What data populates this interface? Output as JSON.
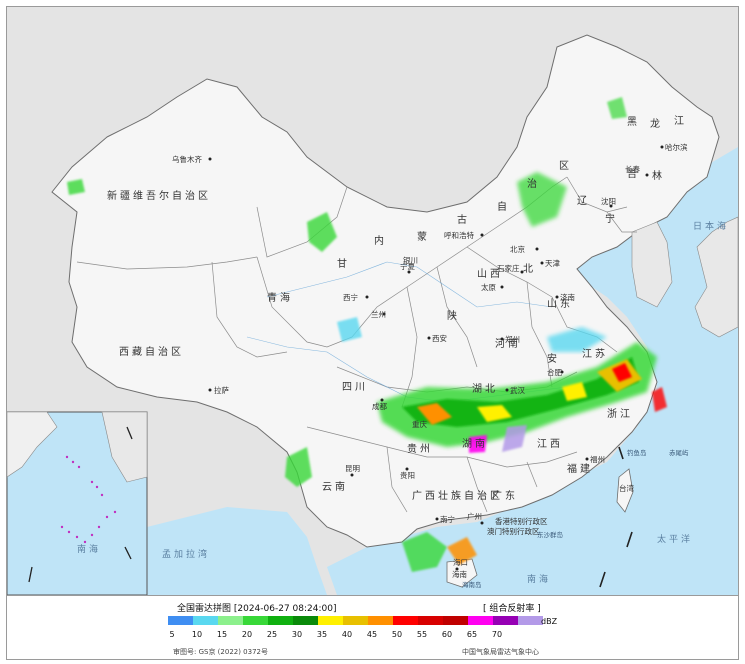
{
  "legend": {
    "title": "全国雷达拼图 [2024-06-27 08:24:00]",
    "mode": "[ 组合反射率 ]",
    "unit": "dBZ",
    "approval": "审图号: GS京 (2022) 0372号",
    "source": "中国气象局雷达气象中心",
    "scale": [
      {
        "value": "5",
        "color": "#3f8ef2"
      },
      {
        "value": "10",
        "color": "#5ad8f0"
      },
      {
        "value": "15",
        "color": "#8cf08c"
      },
      {
        "value": "20",
        "color": "#38d838"
      },
      {
        "value": "25",
        "color": "#10b010"
      },
      {
        "value": "30",
        "color": "#0a8a0a"
      },
      {
        "value": "35",
        "color": "#fff000"
      },
      {
        "value": "40",
        "color": "#e8c000"
      },
      {
        "value": "45",
        "color": "#ff9000"
      },
      {
        "value": "50",
        "color": "#ff0000"
      },
      {
        "value": "55",
        "color": "#d80000"
      },
      {
        "value": "60",
        "color": "#c00000"
      },
      {
        "value": "65",
        "color": "#ff00f0"
      },
      {
        "value": "70",
        "color": "#9600b4"
      },
      {
        "value": "",
        "color": "#b39ae8"
      }
    ]
  },
  "map": {
    "regions": {
      "xinjiang": "新疆维吾尔自治区",
      "xizang": "西藏自治区",
      "qinghai": "青海",
      "neimenggu_1": "内",
      "neimenggu_2": "蒙",
      "neimenggu_3": "古",
      "neimenggu_4": "自",
      "neimenggu_5": "治",
      "neimenggu_6": "区",
      "heilongjiang_1": "黑",
      "heilongjiang_2": "龙",
      "heilongjiang_3": "江",
      "jilin_1": "吉",
      "jilin_2": "林",
      "liaoning_1": "辽",
      "liaoning_2": "宁",
      "gansu": "甘",
      "ningxia": "宁夏",
      "shaanxi": "陕",
      "shanxi": "山西",
      "hebei": "北",
      "shandong": "山东",
      "henan": "河南",
      "hubei": "湖北",
      "hunan": "湖南",
      "sichuan": "四川",
      "chongqing": "重庆",
      "guizhou": "贵州",
      "yunnan": "云南",
      "guangxi": "广西壮族自治区",
      "guangdong": "广东",
      "jiangxi": "江西",
      "anhui": "安",
      "jiangsu": "江苏",
      "zhejiang": "浙江",
      "fujian": "福建",
      "taiwan": "台湾",
      "hainan": "海南"
    },
    "cities": {
      "urumqi": "乌鲁木齐",
      "hohhot": "呼和浩特",
      "beijing": "北京",
      "tianjin": "天津",
      "shijiazhuang": "石家庄",
      "taiyuan": "太原",
      "jinan": "济南",
      "xining": "西宁",
      "lanzhou": "兰州",
      "yinchuan": "银川",
      "xian": "西安",
      "zhengzhou": "郑州",
      "hefei": "合肥",
      "wuhan": "武汉",
      "chengdu": "成都",
      "guiyang": "贵阳",
      "kunming": "昆明",
      "nanning": "南宁",
      "guangzhou": "广州",
      "fuzhou": "福州",
      "lhasa": "拉萨",
      "harbin": "哈尔滨",
      "changchun": "长春",
      "shenyang": "沈阳",
      "haikou": "海口",
      "hk": "香港特别行政区",
      "macao": "澳门特别行政区"
    },
    "seas": {
      "pacific": "太平洋",
      "japan_sea": "日本海",
      "bengal": "孟加拉湾",
      "south_china_sea": "南海",
      "south_sea_inset": "南海"
    },
    "islands": {
      "diaoyu": "钓鱼岛",
      "chiwei": "赤尾屿",
      "dongsha": "东沙群岛",
      "hainan_dao": "海南岛"
    }
  }
}
